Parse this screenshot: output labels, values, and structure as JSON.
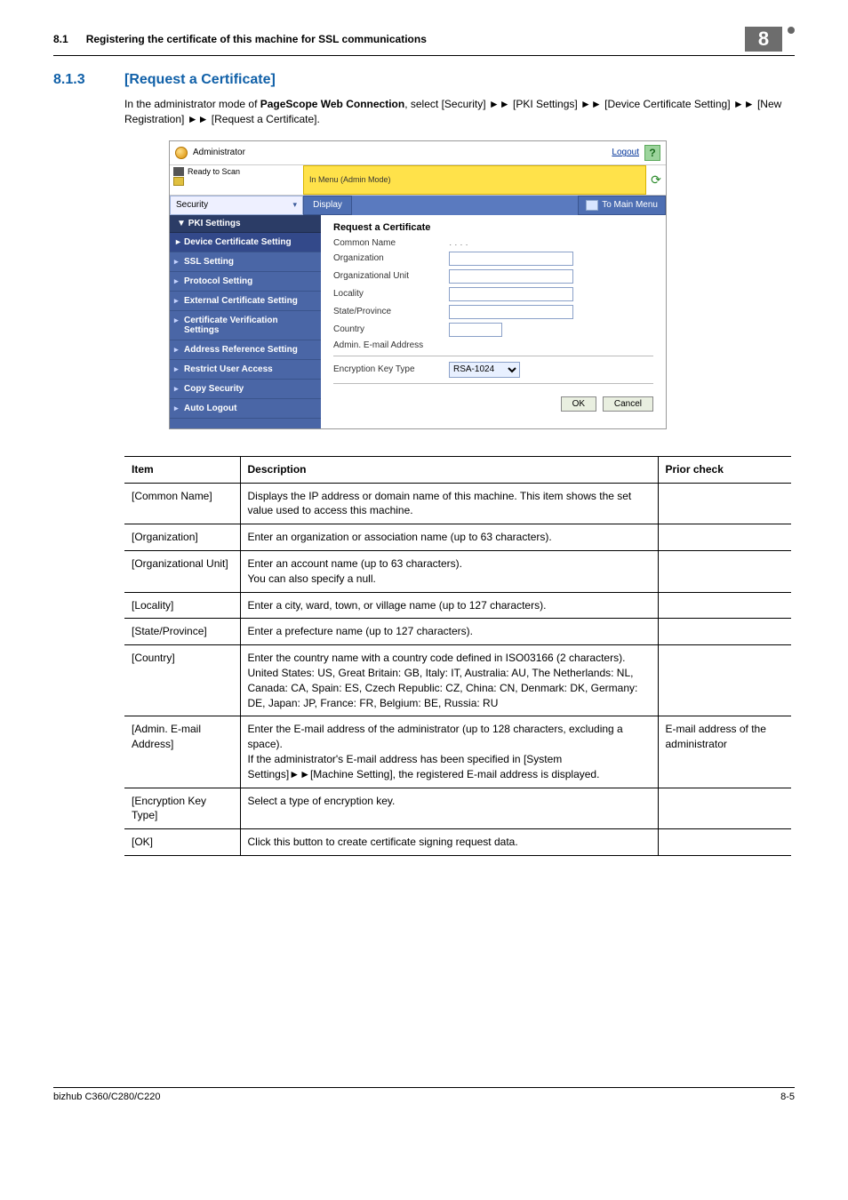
{
  "header": {
    "sec_num": "8.1",
    "sec_title": "Registering the certificate of this machine for SSL communications",
    "chapter": "8"
  },
  "h3": {
    "num": "8.1.3",
    "title": "[Request a Certificate]"
  },
  "intro": {
    "prefix": "In the administrator mode of ",
    "bold": "PageScope Web Connection",
    "rest": ", select [Security] ►► [PKI Settings] ►► [Device Certificate Setting] ►► [New Registration] ►► [Request a Certificate]."
  },
  "screenshot": {
    "admin_label": "Administrator",
    "logout": "Logout",
    "help": "?",
    "status_ready": "Ready to Scan",
    "status_mode": "In Menu (Admin Mode)",
    "tab_select": "Security",
    "tab_display": "Display",
    "to_main_menu": "To Main Menu",
    "sidebar": {
      "group": "PKI Settings",
      "items": [
        "Device Certificate Setting",
        "SSL Setting",
        "Protocol Setting",
        "External Certificate Setting",
        "Certificate Verification Settings",
        "Address Reference Setting",
        "Restrict User Access",
        "Copy Security",
        "Auto Logout"
      ]
    },
    "form": {
      "title": "Request a Certificate",
      "common_name_label": "Common Name",
      "common_name_value": "․ ․ ․ ․",
      "organization": "Organization",
      "org_unit": "Organizational Unit",
      "locality": "Locality",
      "state": "State/Province",
      "country": "Country",
      "admin_email": "Admin. E-mail Address",
      "enc_key": "Encryption Key Type",
      "enc_key_value": "RSA-1024",
      "ok": "OK",
      "cancel": "Cancel"
    }
  },
  "table": {
    "headers": {
      "item": "Item",
      "desc": "Description",
      "prior": "Prior check"
    },
    "rows": [
      {
        "item": "[Common Name]",
        "desc": "Displays the IP address or domain name of this machine. This item shows the set value used to access this machine.",
        "prior": ""
      },
      {
        "item": "[Organization]",
        "desc": "Enter an organization or association name (up to 63 characters).",
        "prior": ""
      },
      {
        "item": "[Organizational Unit]",
        "desc": "Enter an account name (up to 63 characters).\nYou can also specify a null.",
        "prior": ""
      },
      {
        "item": "[Locality]",
        "desc": "Enter a city, ward, town, or village name (up to 127 characters).",
        "prior": ""
      },
      {
        "item": "[State/Province]",
        "desc": "Enter a prefecture name (up to 127 characters).",
        "prior": ""
      },
      {
        "item": "[Country]",
        "desc": "Enter the country name with a country code defined in ISO03166 (2 characters).\nUnited States: US, Great Britain: GB, Italy: IT, Australia: AU, The Netherlands: NL, Canada: CA, Spain: ES, Czech Republic: CZ, China: CN, Denmark: DK, Germany: DE, Japan: JP, France: FR, Belgium: BE, Russia: RU",
        "prior": ""
      },
      {
        "item": "[Admin. E-mail Address]",
        "desc": "Enter the E-mail address of the administrator (up to 128 characters, excluding a space).\nIf the administrator's E-mail address has been specified in [System Settings]►►[Machine Setting], the registered E-mail address is displayed.",
        "prior": "E-mail address of the administrator"
      },
      {
        "item": "[Encryption Key Type]",
        "desc": "Select a type of encryption key.",
        "prior": ""
      },
      {
        "item": "[OK]",
        "desc": "Click this button to create certificate signing request data.",
        "prior": ""
      }
    ]
  },
  "footer": {
    "left": "bizhub C360/C280/C220",
    "right": "8-5"
  }
}
